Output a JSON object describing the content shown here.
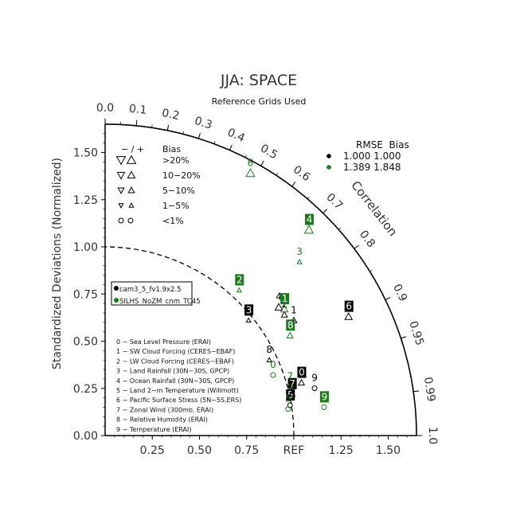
{
  "chart_data": {
    "type": "scatter",
    "title": "JJA: SPACE",
    "subtitle": "Reference Grids Used",
    "ylabel": "Standardized Deviations (Normalized)",
    "arc_label": "Correlation",
    "ref_label": "REF",
    "axis_ticks": [
      "0.00",
      "0.25",
      "0.50",
      "0.75",
      "1.00",
      "1.25",
      "1.50"
    ],
    "x_ticks": [
      "0.25",
      "0.50",
      "0.75",
      "1.25",
      "1.50"
    ],
    "corr_ticks": [
      "0.0",
      "0.1",
      "0.2",
      "0.3",
      "0.4",
      "0.5",
      "0.6",
      "0.7",
      "0.8",
      "0.9",
      "0.95",
      "0.99",
      "1.0"
    ],
    "rmse_legend": {
      "header": "RMSE  Bias",
      "rows": [
        {
          "text": "1.000 1.000",
          "color": "#000000"
        },
        {
          "text": "1.389 1.848",
          "color": "#1a7a1a"
        }
      ]
    },
    "bias_legend": {
      "header_signs": "− / +",
      "header_label": "Bias",
      "rows": [
        {
          "label": ">20%",
          "level": 4
        },
        {
          "label": "10−20%",
          "level": 3
        },
        {
          "label": "5−10%",
          "level": 2
        },
        {
          "label": "1−5%",
          "level": 1
        },
        {
          "label": "<1%",
          "level": 0
        }
      ]
    },
    "model_legend": [
      {
        "name": "cam3_5_fv1.9x2.5",
        "color": "#000000"
      },
      {
        "name": "SILHS_NoZM_cnm_TC45",
        "color": "#1a7a1a"
      }
    ],
    "variable_legend": [
      "0 − Sea Level Pressure (ERAI)",
      "1 − SW Cloud Forcing (CERES−EBAF)",
      "2 − LW Cloud Forcing (CERES−EBAF)",
      "3 − Land Rainfall (30N−30S, GPCP)",
      "4 − Ocean Rainfall (30N−30S, GPCP)",
      "5 − Land 2−m Temperature (Willmott)",
      "6 − Pacific Surface Stress (5N−5S,ERS)",
      "7 − Zonal Wind (300mb, ERAI)",
      "8 − Relative Humidity (ERAI)",
      "9 − Temperature (ERAI)"
    ],
    "series": [
      {
        "name": "cam3_5_fv1.9x2.5",
        "color": "#000000",
        "points": [
          {
            "label": "0",
            "x": 1.04,
            "y": 0.31,
            "boxed": true,
            "marker": "up",
            "level": 2
          },
          {
            "label": "1",
            "x": 1.0,
            "y": 0.64,
            "boxed": false,
            "marker": "up",
            "level": 2
          },
          {
            "label": "2",
            "x": 0.95,
            "y": 0.67,
            "boxed": false,
            "marker": "up",
            "level": 2
          },
          {
            "label": "3",
            "x": 0.76,
            "y": 0.64,
            "boxed": true,
            "marker": "up",
            "level": 1
          },
          {
            "label": "4",
            "x": 0.92,
            "y": 0.71,
            "boxed": false,
            "marker": "up",
            "level": 3
          },
          {
            "label": "5",
            "x": 0.98,
            "y": 0.19,
            "boxed": true,
            "marker": "circle",
            "level": 0
          },
          {
            "label": "6",
            "x": 1.29,
            "y": 0.66,
            "boxed": true,
            "marker": "up",
            "level": 3
          },
          {
            "label": "7",
            "x": 0.99,
            "y": 0.25,
            "boxed": true,
            "marker": "up",
            "level": 2
          },
          {
            "label": "8",
            "x": 0.87,
            "y": 0.43,
            "boxed": false,
            "marker": "up",
            "level": 1
          },
          {
            "label": "9",
            "x": 1.11,
            "y": 0.28,
            "boxed": false,
            "marker": "circle",
            "level": 0
          }
        ]
      },
      {
        "name": "SILHS_NoZM_cnm_TC45",
        "color": "#1a7a1a",
        "points": [
          {
            "label": "0",
            "x": 0.89,
            "y": 0.35,
            "boxed": false,
            "marker": "circle",
            "level": 0
          },
          {
            "label": "1",
            "x": 0.95,
            "y": 0.7,
            "boxed": true,
            "marker": "up",
            "level": 3
          },
          {
            "label": "2",
            "x": 0.71,
            "y": 0.8,
            "boxed": true,
            "marker": "up",
            "level": 1
          },
          {
            "label": "3",
            "x": 1.03,
            "y": 0.95,
            "boxed": false,
            "marker": "up",
            "level": 1
          },
          {
            "label": "4",
            "x": 1.08,
            "y": 1.12,
            "boxed": true,
            "marker": "up",
            "level": 4
          },
          {
            "label": "5",
            "x": 0.97,
            "y": 0.17,
            "boxed": false,
            "marker": "circle",
            "level": 0
          },
          {
            "label": "6",
            "x": 0.77,
            "y": 1.42,
            "boxed": false,
            "marker": "up",
            "level": 4
          },
          {
            "label": "7",
            "x": 0.98,
            "y": 0.29,
            "boxed": false,
            "marker": "circle",
            "level": 0
          },
          {
            "label": "8",
            "x": 0.98,
            "y": 0.56,
            "boxed": true,
            "marker": "up",
            "level": 2
          },
          {
            "label": "9",
            "x": 1.16,
            "y": 0.18,
            "boxed": true,
            "marker": "circle",
            "level": 0
          }
        ]
      }
    ],
    "axis_max": 1.65,
    "ref_sd": 1.0
  }
}
